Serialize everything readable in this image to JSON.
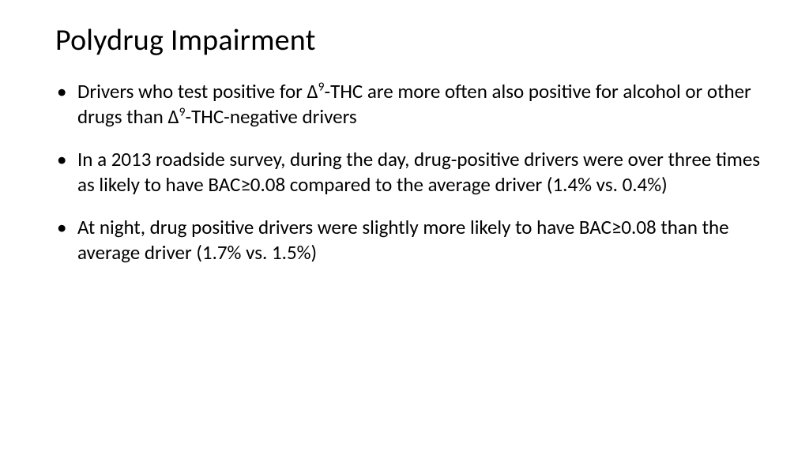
{
  "slide": {
    "title": "Polydrug Impairment",
    "title_fontsize": 38,
    "title_color": "#000000",
    "background_color": "#ffffff",
    "body_fontsize": 25,
    "body_color": "#000000",
    "bullets": [
      {
        "segments": [
          {
            "text": "Drivers who test positive for Δ"
          },
          {
            "text": "9",
            "super": true
          },
          {
            "text": "-THC are more often also positive for alcohol or other drugs than Δ"
          },
          {
            "text": "9",
            "super": true
          },
          {
            "text": "-THC-negative drivers"
          }
        ]
      },
      {
        "segments": [
          {
            "text": "In a 2013 roadside survey, during the day, drug-positive drivers were over three times as likely to have BAC≥0.08 compared to the average driver (1.4% vs. 0.4%)"
          }
        ]
      },
      {
        "segments": [
          {
            "text": "At night, drug positive drivers were slightly more likely to have BAC≥0.08 than the average driver (1.7% vs. 1.5%)"
          }
        ]
      }
    ]
  }
}
